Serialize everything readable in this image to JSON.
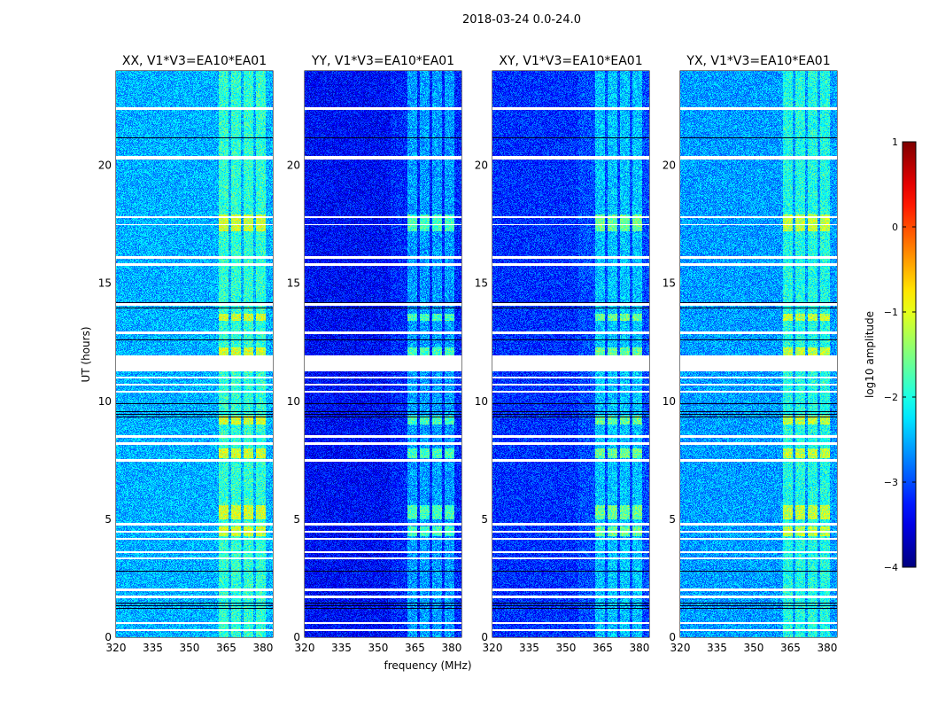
{
  "chart_data": {
    "type": "heatmap",
    "suptitle": "2018-03-24 0.0-24.0",
    "xlabel": "frequency (MHz)",
    "ylabel": "UT (hours)",
    "xlim": [
      320,
      384
    ],
    "ylim": [
      0,
      24
    ],
    "xticks": [
      320,
      335,
      350,
      365,
      380
    ],
    "yticks": [
      0,
      5,
      10,
      15,
      20
    ],
    "panels": [
      {
        "title": "XX, V1*V3=EA10*EA01",
        "base_log_amp": -2.5
      },
      {
        "title": "YY, V1*V3=EA10*EA01",
        "base_log_amp": -3.2
      },
      {
        "title": "XY, V1*V3=EA10*EA01",
        "base_log_amp": -3.0
      },
      {
        "title": "YX, V1*V3=EA10*EA01",
        "base_log_amp": -2.6
      }
    ],
    "rfi_bands_mhz": [
      [
        362,
        366
      ],
      [
        367,
        371
      ],
      [
        372,
        376
      ],
      [
        377,
        381
      ]
    ],
    "bright_rfi_hours": [
      [
        17.2,
        17.9
      ],
      [
        13.4,
        13.7
      ],
      [
        11.9,
        12.3
      ],
      [
        9.0,
        9.4
      ],
      [
        7.6,
        8.0
      ],
      [
        5.0,
        5.6
      ],
      [
        4.3,
        4.7
      ]
    ],
    "flagged_hours_white": [
      [
        22.35,
        22.45
      ],
      [
        20.25,
        20.4
      ],
      [
        17.75,
        17.85
      ],
      [
        17.45,
        17.52
      ],
      [
        16.05,
        16.15
      ],
      [
        15.75,
        15.85
      ],
      [
        14.05,
        14.15
      ],
      [
        12.85,
        12.95
      ],
      [
        11.25,
        11.95
      ],
      [
        10.95,
        11.05
      ],
      [
        10.65,
        10.75
      ],
      [
        10.35,
        10.45
      ],
      [
        8.45,
        8.55
      ],
      [
        8.15,
        8.25
      ],
      [
        7.45,
        7.55
      ],
      [
        4.75,
        4.85
      ],
      [
        4.45,
        4.52
      ],
      [
        4.15,
        4.22
      ],
      [
        3.55,
        3.65
      ],
      [
        3.3,
        3.38
      ],
      [
        1.95,
        2.05
      ],
      [
        1.65,
        1.75
      ],
      [
        0.55,
        0.62
      ],
      [
        0.25,
        0.32
      ]
    ],
    "flagged_hours_black": [
      [
        21.15,
        21.22
      ],
      [
        13.9,
        14.2
      ],
      [
        12.55,
        12.65
      ],
      [
        9.85,
        9.95
      ],
      [
        9.3,
        9.6
      ],
      [
        5.85,
        5.92
      ],
      [
        4.95,
        5.02
      ],
      [
        2.75,
        2.82
      ],
      [
        1.15,
        1.5
      ]
    ],
    "colorbar": {
      "label": "log10 amplitude",
      "range": [
        -4,
        1
      ],
      "ticks": [
        1,
        0,
        -1,
        -2,
        -3,
        -4
      ],
      "tick_labels": [
        "1",
        "0",
        "−1",
        "−2",
        "−3",
        "−4"
      ],
      "colormap": "jet"
    }
  }
}
